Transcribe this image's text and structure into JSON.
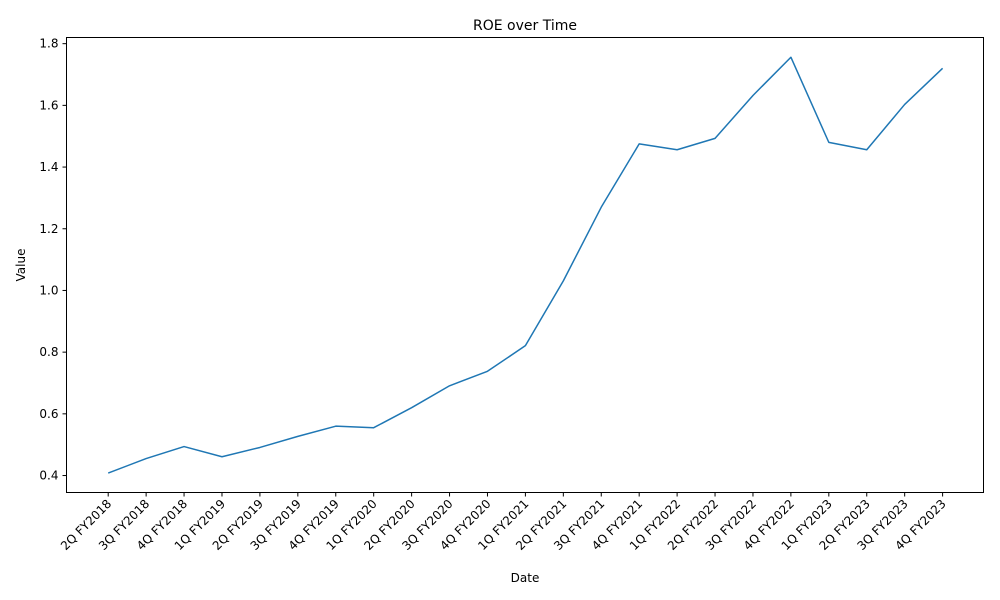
{
  "chart_data": {
    "type": "line",
    "title": "ROE over Time",
    "xlabel": "Date",
    "ylabel": "Value",
    "ylim": [
      0.345,
      1.82
    ],
    "yticks": [
      0.4,
      0.6,
      0.8,
      1.0,
      1.2,
      1.4,
      1.6,
      1.8
    ],
    "ytick_labels": [
      "0.4",
      "0.6",
      "0.8",
      "1.0",
      "1.2",
      "1.4",
      "1.6",
      "1.8"
    ],
    "grid": false,
    "categories": [
      "2Q FY2018",
      "3Q FY2018",
      "4Q FY2018",
      "1Q FY2019",
      "2Q FY2019",
      "3Q FY2019",
      "4Q FY2019",
      "1Q FY2020",
      "2Q FY2020",
      "3Q FY2020",
      "4Q FY2020",
      "1Q FY2021",
      "2Q FY2021",
      "3Q FY2021",
      "4Q FY2021",
      "1Q FY2022",
      "2Q FY2022",
      "3Q FY2022",
      "4Q FY2022",
      "1Q FY2023",
      "2Q FY2023",
      "3Q FY2023",
      "4Q FY2023"
    ],
    "series": [
      {
        "color": "#1f77b4",
        "values": [
          0.408,
          0.455,
          0.494,
          0.461,
          0.491,
          0.527,
          0.56,
          0.555,
          0.62,
          0.691,
          0.738,
          0.821,
          1.031,
          1.27,
          1.475,
          1.456,
          1.493,
          1.632,
          1.756,
          1.48,
          1.456,
          1.603,
          1.72
        ]
      }
    ]
  }
}
